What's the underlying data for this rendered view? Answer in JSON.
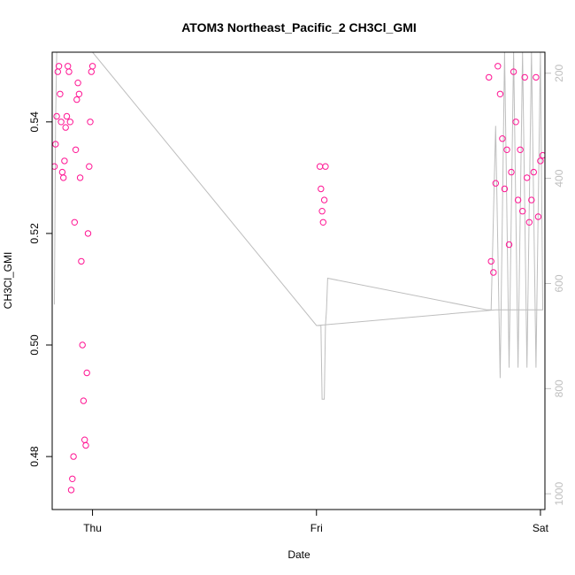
{
  "chart_data": {
    "type": "scatter",
    "title": "ATOM3 Northeast_Pacific_2 CH3Cl_GMI",
    "xlabel": "Date",
    "ylabel": "CH3Cl_GMI",
    "x_ticks": [
      "Thu",
      "Fri",
      "Sat"
    ],
    "x_range_days": [
      -0.18,
      2.02
    ],
    "ylim": [
      0.4705,
      0.5525
    ],
    "y_ticks": [
      0.48,
      0.5,
      0.52,
      0.54
    ],
    "y_tick_labels": [
      "0.48",
      "0.50",
      "0.52",
      "0.54"
    ],
    "y2lim": [
      1030,
      160
    ],
    "y2_ticks": [
      200,
      400,
      600,
      800,
      1000
    ],
    "y2_tick_labels": [
      "200",
      "400",
      "600",
      "800",
      "1000"
    ],
    "marker_color": "#ff1493",
    "marker_color_alt": "#ff00ff",
    "line_color": "#bebebe",
    "grid": false,
    "legend": "none",
    "series": [
      {
        "marker": "circle",
        "segments": [
          {
            "x": [
              -0.17,
              -0.165,
              -0.16,
              -0.155,
              -0.15,
              -0.145,
              -0.14,
              -0.135,
              -0.13,
              -0.125,
              -0.12,
              -0.115,
              -0.11,
              -0.105,
              -0.1,
              -0.095,
              -0.09,
              -0.085,
              -0.08,
              -0.075,
              -0.07,
              -0.065,
              -0.06,
              -0.055,
              -0.05,
              -0.045,
              -0.04,
              -0.035,
              -0.03,
              -0.025,
              -0.02,
              -0.015,
              -0.01,
              -0.005,
              0.0
            ],
            "y": [
              0.532,
              0.536,
              0.541,
              0.549,
              0.55,
              0.545,
              0.54,
              0.531,
              0.53,
              0.533,
              0.539,
              0.541,
              0.55,
              0.549,
              0.54,
              0.474,
              0.476,
              0.48,
              0.522,
              0.535,
              0.544,
              0.547,
              0.545,
              0.53,
              0.515,
              0.5,
              0.49,
              0.483,
              0.482,
              0.495,
              0.52,
              0.532,
              0.54,
              0.549,
              0.55
            ]
          },
          {
            "x": [
              1.015,
              1.02,
              1.025,
              1.03,
              1.035,
              1.04
            ],
            "y": [
              0.532,
              0.528,
              0.524,
              0.522,
              0.526,
              0.532
            ]
          },
          {
            "x": [
              1.77,
              1.78,
              1.79,
              1.8,
              1.81,
              1.82,
              1.83,
              1.84,
              1.85,
              1.86,
              1.87,
              1.88,
              1.89,
              1.9,
              1.91,
              1.92,
              1.93,
              1.94,
              1.95,
              1.96,
              1.97,
              1.98,
              1.99,
              2.0,
              2.01
            ],
            "y": [
              0.548,
              0.515,
              0.513,
              0.529,
              0.55,
              0.545,
              0.537,
              0.528,
              0.535,
              0.518,
              0.531,
              0.549,
              0.54,
              0.526,
              0.535,
              0.524,
              0.548,
              0.53,
              0.522,
              0.526,
              0.531,
              0.548,
              0.523,
              0.533,
              0.534
            ]
          }
        ]
      },
      {
        "name": "pressure",
        "axis": "right",
        "marker": "line",
        "x": [
          -0.17,
          -0.165,
          -0.16,
          -0.15,
          -0.14,
          -0.13,
          -0.12,
          -0.11,
          -0.1,
          -0.09,
          -0.08,
          -0.07,
          -0.06,
          -0.05,
          -0.04,
          -0.03,
          -0.02,
          -0.01,
          0.0,
          1.0,
          1.02,
          1.025,
          1.035,
          1.04,
          1.045,
          1.05,
          1.76,
          1.78,
          1.8,
          1.82,
          1.84,
          1.86,
          1.88,
          1.9,
          1.92,
          1.94,
          1.96,
          1.98,
          2.0,
          2.01,
          1.8,
          1.0
        ],
        "y": [
          640,
          300,
          160,
          160,
          160,
          160,
          160,
          160,
          160,
          160,
          160,
          160,
          160,
          160,
          160,
          160,
          160,
          160,
          160,
          680,
          680,
          820,
          820,
          680,
          650,
          590,
          650,
          650,
          300,
          780,
          160,
          760,
          160,
          760,
          160,
          760,
          160,
          760,
          160,
          650,
          650,
          680
        ]
      }
    ]
  }
}
